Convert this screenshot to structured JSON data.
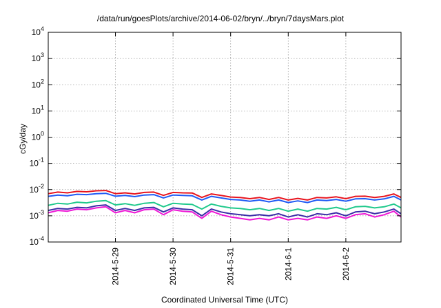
{
  "chart_data": {
    "type": "line",
    "title": "/data/run/goesPlots/archive/2014-06-02/bryn/../bryn/7daysMars.plot",
    "xlabel": "Coordinated Universal Time (UTC)",
    "ylabel": "cGy/day",
    "yscale": "log",
    "ylim": [
      0.0001,
      10000
    ],
    "y_ticks": [
      {
        "base": "10",
        "exp": "-4",
        "value": 0.0001
      },
      {
        "base": "10",
        "exp": "-3",
        "value": 0.001
      },
      {
        "base": "10",
        "exp": "-2",
        "value": 0.01
      },
      {
        "base": "10",
        "exp": "-1",
        "value": 0.1
      },
      {
        "base": "10",
        "exp": "0",
        "value": 1
      },
      {
        "base": "10",
        "exp": "1",
        "value": 10
      },
      {
        "base": "10",
        "exp": "2",
        "value": 100
      },
      {
        "base": "10",
        "exp": "3",
        "value": 1000
      },
      {
        "base": "10",
        "exp": "4",
        "value": 10000
      }
    ],
    "xlim": [
      "2014-05-27 20:00",
      "2014-06-02 23:00"
    ],
    "x_ticks": [
      {
        "label": "2014-5-29",
        "value": "2014-05-29 00:00"
      },
      {
        "label": "2014-5-30",
        "value": "2014-05-30 00:00"
      },
      {
        "label": "2014-5-31",
        "value": "2014-05-31 00:00"
      },
      {
        "label": "2014-6-1",
        "value": "2014-06-01 00:00"
      },
      {
        "label": "2014-6-2",
        "value": "2014-06-02 00:00"
      }
    ],
    "grid": true,
    "x": [
      "2014-05-27 20:00",
      "2014-05-28 00:00",
      "2014-05-28 04:00",
      "2014-05-28 08:00",
      "2014-05-28 12:00",
      "2014-05-28 16:00",
      "2014-05-28 20:00",
      "2014-05-29 00:00",
      "2014-05-29 04:00",
      "2014-05-29 08:00",
      "2014-05-29 12:00",
      "2014-05-29 16:00",
      "2014-05-29 20:00",
      "2014-05-30 00:00",
      "2014-05-30 04:00",
      "2014-05-30 08:00",
      "2014-05-30 12:00",
      "2014-05-30 16:00",
      "2014-05-30 20:00",
      "2014-05-31 00:00",
      "2014-05-31 04:00",
      "2014-05-31 08:00",
      "2014-05-31 12:00",
      "2014-05-31 16:00",
      "2014-05-31 20:00",
      "2014-06-01 00:00",
      "2014-06-01 04:00",
      "2014-06-01 08:00",
      "2014-06-01 12:00",
      "2014-06-01 16:00",
      "2014-06-01 20:00",
      "2014-06-02 00:00",
      "2014-06-02 04:00",
      "2014-06-02 08:00",
      "2014-06-02 12:00",
      "2014-06-02 16:00",
      "2014-06-02 20:00",
      "2014-06-02 23:00"
    ],
    "series": [
      {
        "color": "#e8141e",
        "values": [
          0.007,
          0.008,
          0.0075,
          0.0085,
          0.0082,
          0.009,
          0.0092,
          0.007,
          0.0075,
          0.0068,
          0.0078,
          0.008,
          0.006,
          0.0078,
          0.0075,
          0.0074,
          0.005,
          0.0068,
          0.006,
          0.0052,
          0.005,
          0.0045,
          0.005,
          0.0042,
          0.005,
          0.004,
          0.0046,
          0.004,
          0.005,
          0.0048,
          0.0053,
          0.0045,
          0.0055,
          0.0056,
          0.005,
          0.0055,
          0.0068,
          0.005
        ]
      },
      {
        "color": "#1f5af5",
        "values": [
          0.0055,
          0.0062,
          0.0058,
          0.0066,
          0.0064,
          0.007,
          0.0072,
          0.0056,
          0.006,
          0.0054,
          0.0062,
          0.0064,
          0.0048,
          0.0062,
          0.006,
          0.0058,
          0.004,
          0.0055,
          0.0048,
          0.0042,
          0.004,
          0.0036,
          0.004,
          0.0034,
          0.004,
          0.0032,
          0.0037,
          0.0032,
          0.004,
          0.0038,
          0.0042,
          0.0036,
          0.0044,
          0.0045,
          0.004,
          0.0044,
          0.0055,
          0.004
        ]
      },
      {
        "color": "#1fc98c",
        "values": [
          0.0025,
          0.003,
          0.0028,
          0.0033,
          0.0031,
          0.0036,
          0.0038,
          0.0026,
          0.0029,
          0.0025,
          0.003,
          0.0032,
          0.0022,
          0.003,
          0.0028,
          0.0027,
          0.0018,
          0.0028,
          0.0023,
          0.002,
          0.0019,
          0.0017,
          0.0019,
          0.0016,
          0.0019,
          0.0015,
          0.0018,
          0.0015,
          0.0019,
          0.0018,
          0.0021,
          0.0017,
          0.0022,
          0.0023,
          0.002,
          0.0022,
          0.0028,
          0.002
        ]
      },
      {
        "color": "#3c2da8",
        "values": [
          0.0016,
          0.0019,
          0.0018,
          0.0021,
          0.002,
          0.0024,
          0.0026,
          0.0016,
          0.0019,
          0.0016,
          0.002,
          0.0021,
          0.0014,
          0.002,
          0.0018,
          0.0017,
          0.001,
          0.0018,
          0.0014,
          0.0012,
          0.0011,
          0.001,
          0.0011,
          0.001,
          0.0012,
          0.0009,
          0.0011,
          0.0009,
          0.0012,
          0.0011,
          0.0013,
          0.001,
          0.0014,
          0.0015,
          0.0012,
          0.0014,
          0.0018,
          0.0012
        ]
      },
      {
        "color": "#ee17d6",
        "values": [
          0.0013,
          0.0016,
          0.0015,
          0.0018,
          0.0017,
          0.002,
          0.0022,
          0.0013,
          0.0016,
          0.0013,
          0.0017,
          0.0018,
          0.0011,
          0.0017,
          0.0015,
          0.0014,
          0.0008,
          0.0015,
          0.0011,
          0.0009,
          0.0008,
          0.0007,
          0.0008,
          0.0007,
          0.0009,
          0.0007,
          0.0008,
          0.0007,
          0.0009,
          0.0008,
          0.001,
          0.0008,
          0.0011,
          0.0012,
          0.0009,
          0.0011,
          0.0015,
          0.0009
        ]
      }
    ]
  }
}
